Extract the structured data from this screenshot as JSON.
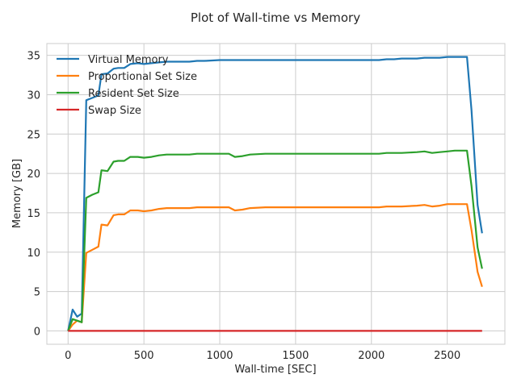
{
  "chart_data": {
    "type": "line",
    "title": "Plot of Wall-time vs Memory",
    "xlabel": "Wall-time [SEC]",
    "ylabel": "Memory [GB]",
    "xlim": [
      -140,
      2880
    ],
    "ylim": [
      -1.7,
      36.5
    ],
    "xticks": [
      0,
      500,
      1000,
      1500,
      2000,
      2500
    ],
    "yticks": [
      0,
      5,
      10,
      15,
      20,
      25,
      30,
      35
    ],
    "grid": true,
    "legend_position": "top-left",
    "series": [
      {
        "name": "Virtual Memory",
        "color": "#1f77b4",
        "x": [
          0,
          30,
          60,
          90,
          120,
          160,
          200,
          220,
          260,
          300,
          330,
          370,
          410,
          460,
          500,
          550,
          600,
          650,
          700,
          800,
          850,
          900,
          1000,
          1100,
          1300,
          1500,
          1700,
          1900,
          2050,
          2100,
          2150,
          2200,
          2300,
          2350,
          2400,
          2450,
          2500,
          2550,
          2600,
          2630,
          2660,
          2700,
          2730
        ],
        "y": [
          0,
          2.7,
          1.8,
          2.2,
          29.3,
          29.6,
          29.9,
          32.6,
          32.7,
          33.3,
          33.4,
          33.4,
          33.9,
          34.0,
          33.9,
          34.0,
          34.1,
          34.2,
          34.2,
          34.2,
          34.3,
          34.3,
          34.4,
          34.4,
          34.4,
          34.4,
          34.4,
          34.4,
          34.4,
          34.5,
          34.5,
          34.6,
          34.6,
          34.7,
          34.7,
          34.7,
          34.8,
          34.8,
          34.8,
          34.8,
          28.0,
          16.0,
          12.4
        ]
      },
      {
        "name": "Proportional Set Size",
        "color": "#ff7f0e",
        "x": [
          0,
          30,
          60,
          90,
          120,
          160,
          200,
          220,
          260,
          300,
          330,
          370,
          410,
          460,
          500,
          550,
          600,
          650,
          700,
          800,
          850,
          900,
          1000,
          1060,
          1100,
          1150,
          1200,
          1300,
          1500,
          1700,
          1900,
          2050,
          2100,
          2200,
          2300,
          2350,
          2400,
          2450,
          2500,
          2550,
          2600,
          2630,
          2660,
          2700,
          2730
        ],
        "y": [
          0,
          0.8,
          1.3,
          1.1,
          9.9,
          10.3,
          10.7,
          13.5,
          13.4,
          14.7,
          14.8,
          14.8,
          15.3,
          15.3,
          15.2,
          15.3,
          15.5,
          15.6,
          15.6,
          15.6,
          15.7,
          15.7,
          15.7,
          15.7,
          15.3,
          15.4,
          15.6,
          15.7,
          15.7,
          15.7,
          15.7,
          15.7,
          15.8,
          15.8,
          15.9,
          16.0,
          15.8,
          15.9,
          16.1,
          16.1,
          16.1,
          16.1,
          12.8,
          7.5,
          5.6
        ]
      },
      {
        "name": "Resident Set Size",
        "color": "#2ca02c",
        "x": [
          0,
          30,
          60,
          90,
          120,
          160,
          200,
          220,
          260,
          300,
          330,
          370,
          410,
          460,
          500,
          550,
          600,
          650,
          700,
          800,
          850,
          900,
          1000,
          1060,
          1100,
          1150,
          1200,
          1300,
          1500,
          1700,
          1900,
          2050,
          2100,
          2200,
          2300,
          2350,
          2400,
          2450,
          2500,
          2550,
          2600,
          2630,
          2660,
          2700,
          2730
        ],
        "y": [
          0,
          1.5,
          1.3,
          1.1,
          16.9,
          17.3,
          17.6,
          20.4,
          20.3,
          21.5,
          21.6,
          21.6,
          22.1,
          22.1,
          22.0,
          22.1,
          22.3,
          22.4,
          22.4,
          22.4,
          22.5,
          22.5,
          22.5,
          22.5,
          22.1,
          22.2,
          22.4,
          22.5,
          22.5,
          22.5,
          22.5,
          22.5,
          22.6,
          22.6,
          22.7,
          22.8,
          22.6,
          22.7,
          22.8,
          22.9,
          22.9,
          22.9,
          18.4,
          10.6,
          7.9
        ]
      },
      {
        "name": "Swap Size",
        "color": "#d62728",
        "x": [
          0,
          2730
        ],
        "y": [
          0,
          0
        ]
      }
    ]
  }
}
